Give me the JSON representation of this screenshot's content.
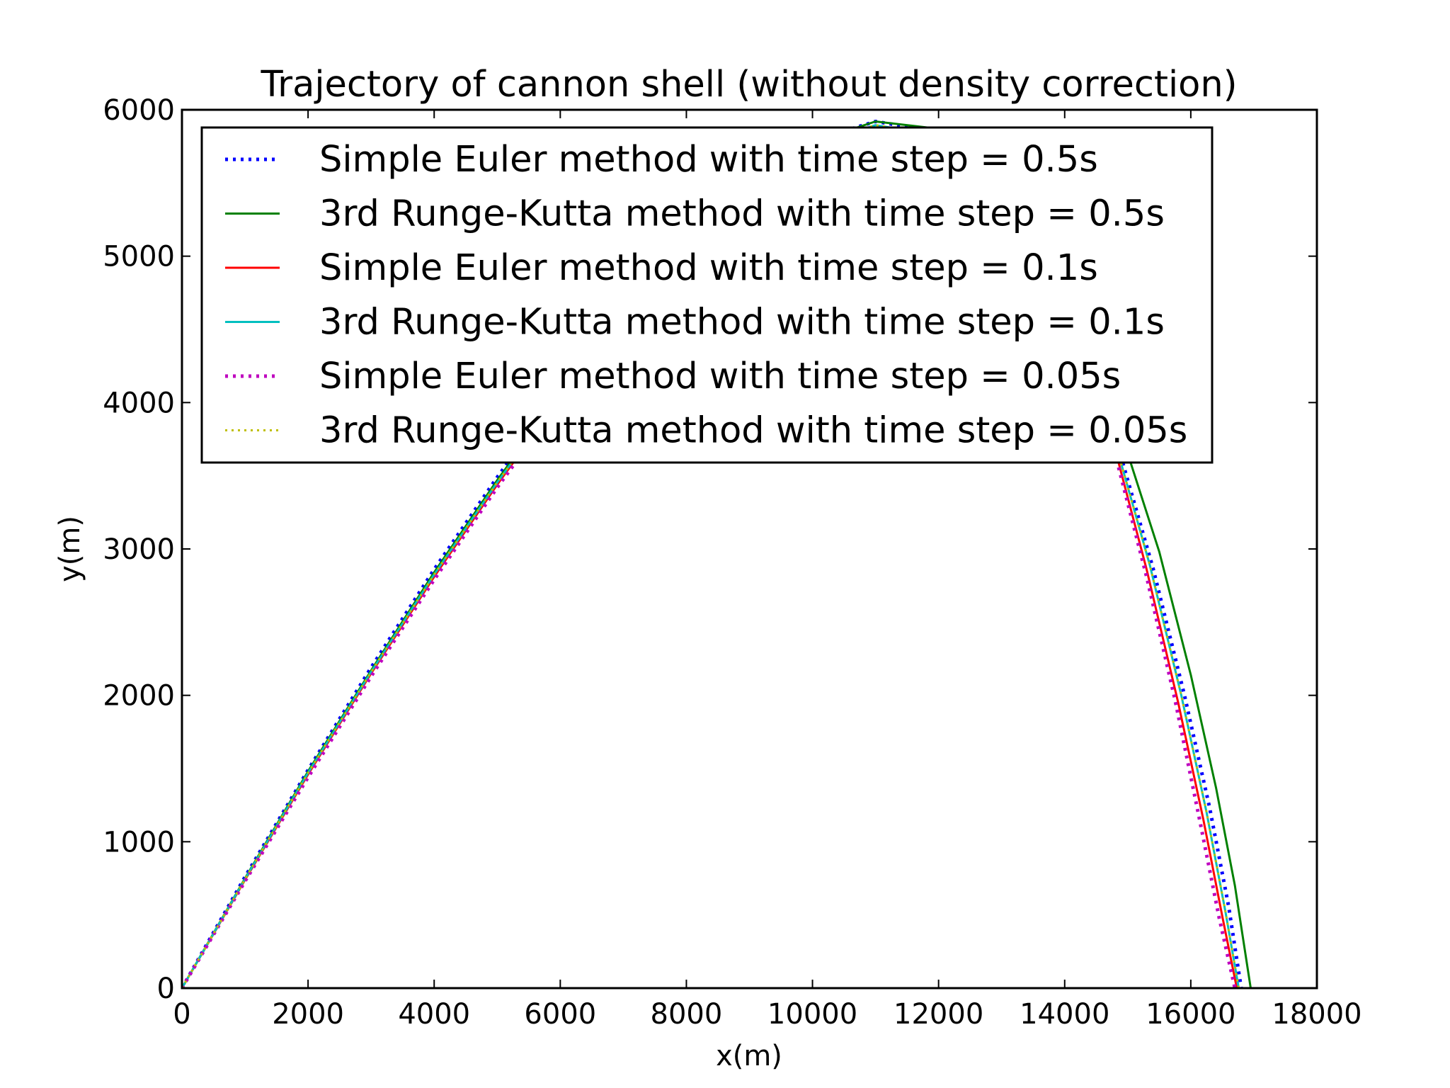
{
  "chart_data": {
    "type": "line",
    "title": "Trajectory of cannon shell (without density correction)",
    "xlabel": "x(m)",
    "ylabel": "y(m)",
    "xlim": [
      0,
      18000
    ],
    "ylim": [
      0,
      6000
    ],
    "xticks": [
      "0",
      "2000",
      "4000",
      "6000",
      "8000",
      "10000",
      "12000",
      "14000",
      "16000",
      "18000"
    ],
    "yticks": [
      "0",
      "1000",
      "2000",
      "3000",
      "4000",
      "5000",
      "6000"
    ],
    "grid": false,
    "legend_position": "top",
    "series": [
      {
        "name": "Simple Euler method with time step = 0.5s",
        "color": "#0000ff",
        "dash": "dotted-thick",
        "points": [
          [
            0,
            0
          ],
          [
            1000,
            760
          ],
          [
            2000,
            1490
          ],
          [
            3000,
            2190
          ],
          [
            4000,
            2860
          ],
          [
            5000,
            3490
          ],
          [
            6000,
            4080
          ],
          [
            7000,
            4620
          ],
          [
            8000,
            5100
          ],
          [
            9000,
            5500
          ],
          [
            10000,
            5790
          ],
          [
            11000,
            5920
          ],
          [
            12000,
            5850
          ],
          [
            13000,
            5480
          ],
          [
            14000,
            4710
          ],
          [
            14800,
            3770
          ],
          [
            15400,
            2870
          ],
          [
            15900,
            2000
          ],
          [
            16300,
            1230
          ],
          [
            16600,
            560
          ],
          [
            16800,
            0
          ]
        ]
      },
      {
        "name": "3rd Runge-Kutta method with time step = 0.5s",
        "color": "#008000",
        "dash": "solid",
        "points": [
          [
            0,
            0
          ],
          [
            1000,
            750
          ],
          [
            2000,
            1480
          ],
          [
            3000,
            2170
          ],
          [
            4000,
            2840
          ],
          [
            5000,
            3470
          ],
          [
            6000,
            4060
          ],
          [
            7000,
            4600
          ],
          [
            8000,
            5080
          ],
          [
            9000,
            5480
          ],
          [
            10000,
            5780
          ],
          [
            11000,
            5920
          ],
          [
            12000,
            5870
          ],
          [
            13000,
            5530
          ],
          [
            14000,
            4800
          ],
          [
            14800,
            3920
          ],
          [
            15500,
            2980
          ],
          [
            16000,
            2140
          ],
          [
            16400,
            1370
          ],
          [
            16700,
            700
          ],
          [
            16950,
            0
          ]
        ]
      },
      {
        "name": "Simple Euler method with time step = 0.1s",
        "color": "#ff0000",
        "dash": "solid",
        "points": [
          [
            0,
            0
          ],
          [
            1000,
            740
          ],
          [
            2000,
            1460
          ],
          [
            3000,
            2150
          ],
          [
            4000,
            2810
          ],
          [
            5000,
            3440
          ],
          [
            6000,
            4030
          ],
          [
            7000,
            4570
          ],
          [
            8000,
            5050
          ],
          [
            9000,
            5450
          ],
          [
            10000,
            5740
          ],
          [
            11000,
            5870
          ],
          [
            12000,
            5800
          ],
          [
            13000,
            5430
          ],
          [
            14000,
            4660
          ],
          [
            14800,
            3680
          ],
          [
            15300,
            2860
          ],
          [
            15800,
            1950
          ],
          [
            16200,
            1150
          ],
          [
            16500,
            490
          ],
          [
            16730,
            0
          ]
        ]
      },
      {
        "name": "3rd Runge-Kutta method with time step = 0.1s",
        "color": "#00bfbf",
        "dash": "solid",
        "points": [
          [
            0,
            0
          ],
          [
            1000,
            745
          ],
          [
            2000,
            1470
          ],
          [
            3000,
            2160
          ],
          [
            4000,
            2825
          ],
          [
            5000,
            3455
          ],
          [
            6000,
            4045
          ],
          [
            7000,
            4585
          ],
          [
            8000,
            5065
          ],
          [
            9000,
            5465
          ],
          [
            10000,
            5760
          ],
          [
            11000,
            5895
          ],
          [
            12000,
            5825
          ],
          [
            13000,
            5460
          ],
          [
            14000,
            4690
          ],
          [
            14800,
            3730
          ],
          [
            15350,
            2890
          ],
          [
            15850,
            2000
          ],
          [
            16250,
            1200
          ],
          [
            16550,
            520
          ],
          [
            16760,
            0
          ]
        ]
      },
      {
        "name": "Simple Euler method with time step = 0.05s",
        "color": "#bf00bf",
        "dash": "dotted-thick",
        "points": [
          [
            0,
            0
          ],
          [
            1000,
            730
          ],
          [
            2000,
            1440
          ],
          [
            3000,
            2130
          ],
          [
            4000,
            2790
          ],
          [
            5000,
            3420
          ],
          [
            6000,
            4010
          ],
          [
            7000,
            4550
          ],
          [
            8000,
            5030
          ],
          [
            9000,
            5430
          ],
          [
            10000,
            5720
          ],
          [
            11000,
            5850
          ],
          [
            12000,
            5780
          ],
          [
            13000,
            5410
          ],
          [
            14000,
            4640
          ],
          [
            14800,
            3650
          ],
          [
            15300,
            2810
          ],
          [
            15750,
            1970
          ],
          [
            16150,
            1130
          ],
          [
            16450,
            480
          ],
          [
            16700,
            0
          ]
        ]
      },
      {
        "name": "3rd Runge-Kutta method with time step = 0.05s",
        "color": "#bfbf00",
        "dash": "dotted-thin",
        "points": [
          [
            0,
            0
          ],
          [
            1000,
            745
          ],
          [
            2000,
            1470
          ],
          [
            3000,
            2160
          ],
          [
            4000,
            2825
          ],
          [
            5000,
            3455
          ],
          [
            6000,
            4045
          ],
          [
            7000,
            4585
          ],
          [
            8000,
            5065
          ],
          [
            9000,
            5465
          ],
          [
            10000,
            5760
          ],
          [
            11000,
            5895
          ],
          [
            12000,
            5825
          ],
          [
            13000,
            5460
          ],
          [
            14000,
            4690
          ],
          [
            14800,
            3730
          ],
          [
            15350,
            2890
          ],
          [
            15850,
            2000
          ],
          [
            16250,
            1200
          ],
          [
            16550,
            520
          ],
          [
            16760,
            0
          ]
        ]
      }
    ]
  }
}
